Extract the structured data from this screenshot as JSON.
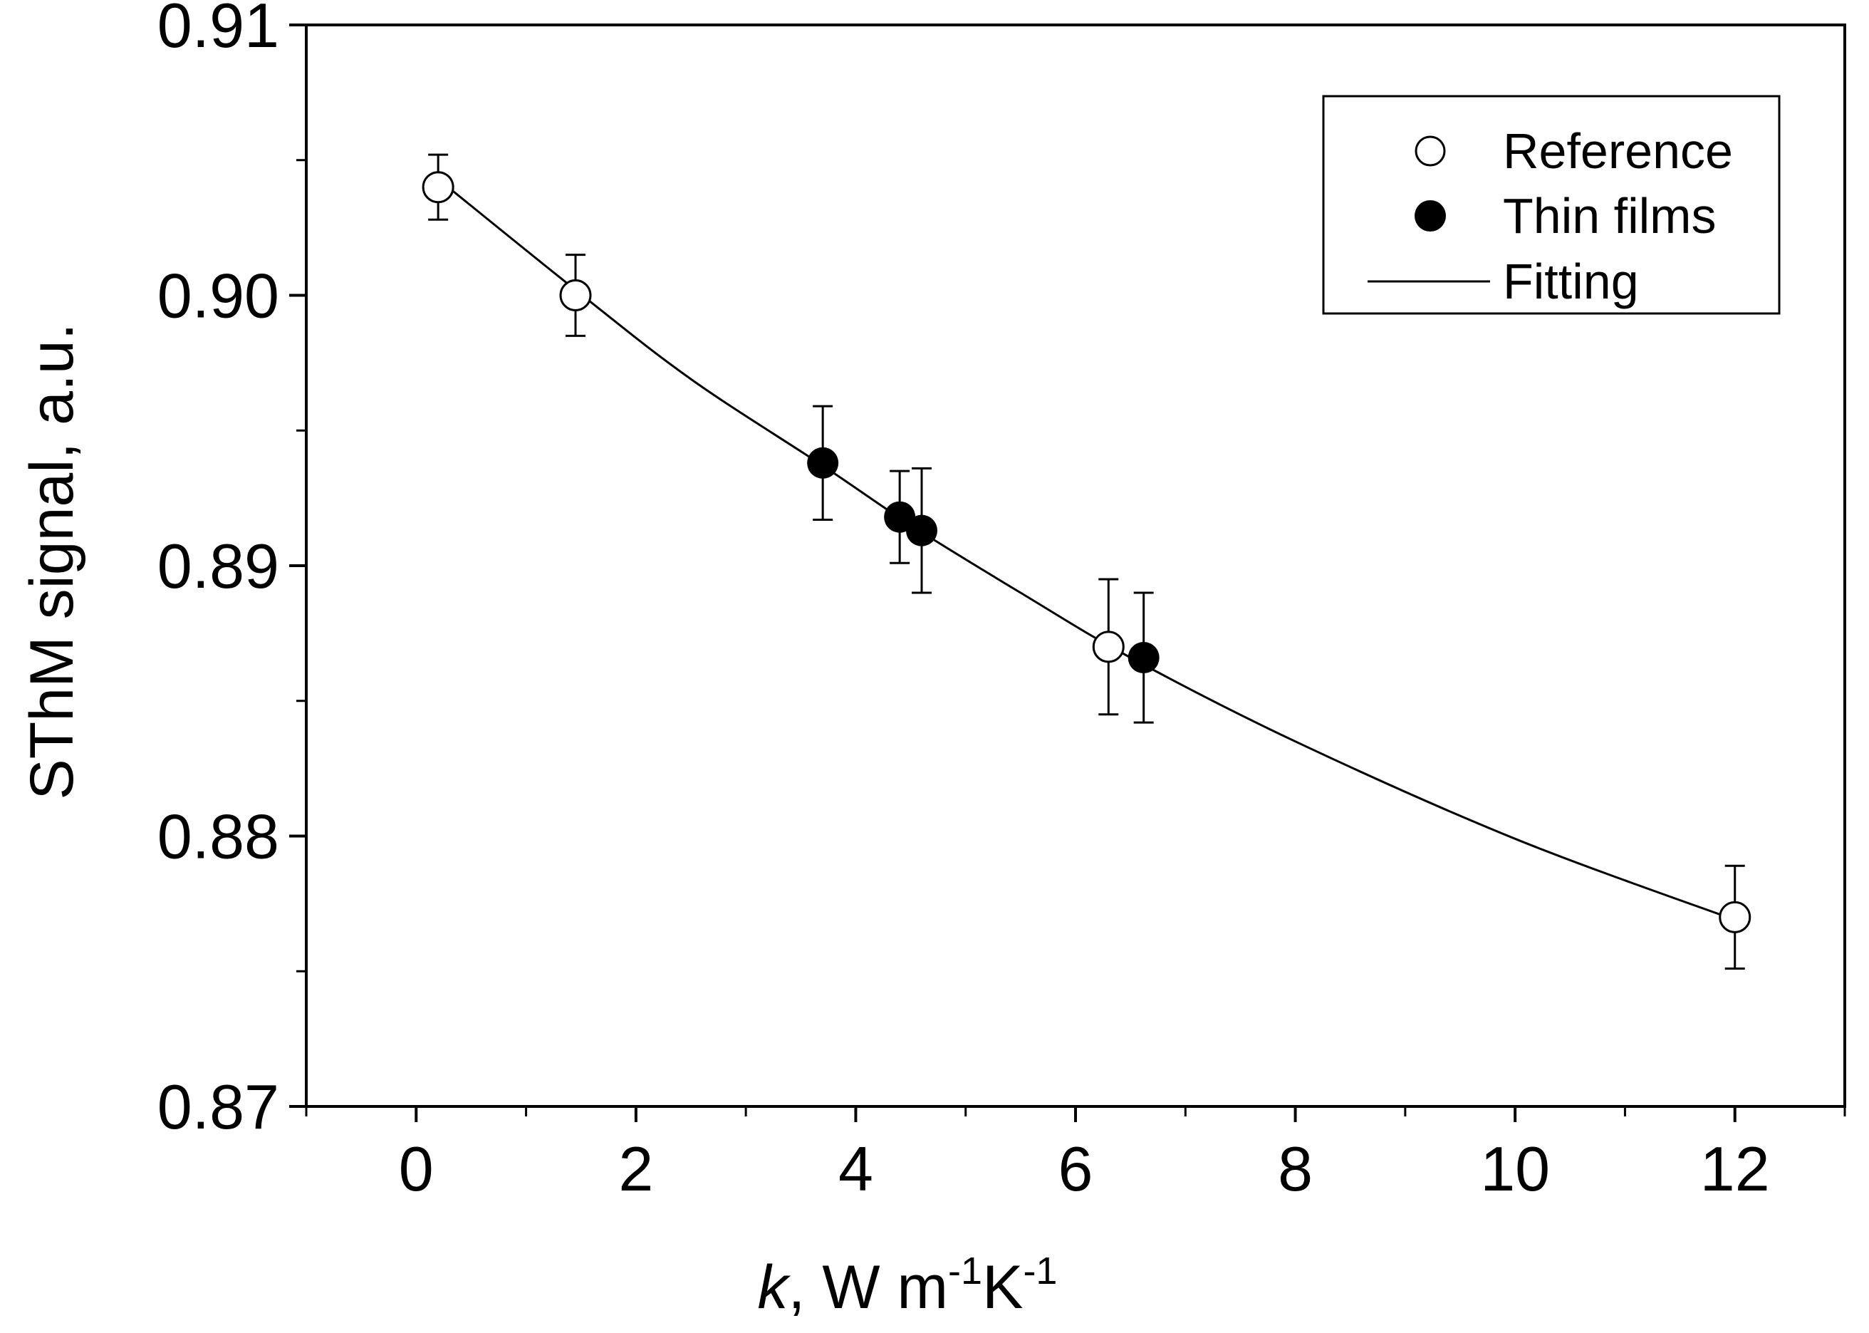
{
  "chart_data": {
    "type": "scatter",
    "xlabel": {
      "italic": "k",
      "rest": ", W m",
      "sup1": "-1",
      "mid": "K",
      "sup2": "-1"
    },
    "ylabel": "SThM signal, a.u.",
    "xlim": [
      -1,
      13
    ],
    "ylim": [
      0.87,
      0.91
    ],
    "xticks": [
      0,
      2,
      4,
      6,
      8,
      10,
      12
    ],
    "xtick_labels": [
      "0",
      "2",
      "4",
      "6",
      "8",
      "10",
      "12"
    ],
    "xminor_ticks": [
      -1,
      1,
      3,
      5,
      7,
      9,
      11,
      13
    ],
    "yticks": [
      0.87,
      0.88,
      0.89,
      0.9,
      0.91
    ],
    "ytick_labels": [
      "0.87",
      "0.88",
      "0.89",
      "0.90",
      "0.91"
    ],
    "yminor_ticks": [
      0.875,
      0.885,
      0.895,
      0.905
    ],
    "legend": {
      "position": "top-right",
      "entries": [
        {
          "label": "Reference",
          "marker": "open-circle"
        },
        {
          "label": "Thin films",
          "marker": "filled-circle"
        },
        {
          "label": "Fitting",
          "marker": "line"
        }
      ]
    },
    "series": [
      {
        "name": "Reference",
        "marker": "open-circle",
        "points": [
          {
            "x": 0.2,
            "y": 0.904,
            "err": 0.0012
          },
          {
            "x": 1.45,
            "y": 0.9,
            "err": 0.0015
          },
          {
            "x": 6.3,
            "y": 0.887,
            "err": 0.0025
          },
          {
            "x": 12.0,
            "y": 0.877,
            "err": 0.0019
          }
        ]
      },
      {
        "name": "Thin films",
        "marker": "filled-circle",
        "points": [
          {
            "x": 3.7,
            "y": 0.8938,
            "err": 0.0021
          },
          {
            "x": 4.4,
            "y": 0.8918,
            "err": 0.0017
          },
          {
            "x": 4.6,
            "y": 0.8913,
            "err": 0.0023
          },
          {
            "x": 6.62,
            "y": 0.8866,
            "err": 0.0024
          }
        ]
      },
      {
        "name": "Fitting",
        "marker": "line",
        "points": [
          {
            "x": 0.2,
            "y": 0.9043
          },
          {
            "x": 1.45,
            "y": 0.9002
          },
          {
            "x": 2.5,
            "y": 0.8969
          },
          {
            "x": 3.7,
            "y": 0.8937
          },
          {
            "x": 4.5,
            "y": 0.8915
          },
          {
            "x": 5.5,
            "y": 0.889
          },
          {
            "x": 6.5,
            "y": 0.8866
          },
          {
            "x": 8.0,
            "y": 0.8835
          },
          {
            "x": 10.0,
            "y": 0.8799
          },
          {
            "x": 12.0,
            "y": 0.8769
          }
        ]
      }
    ]
  }
}
